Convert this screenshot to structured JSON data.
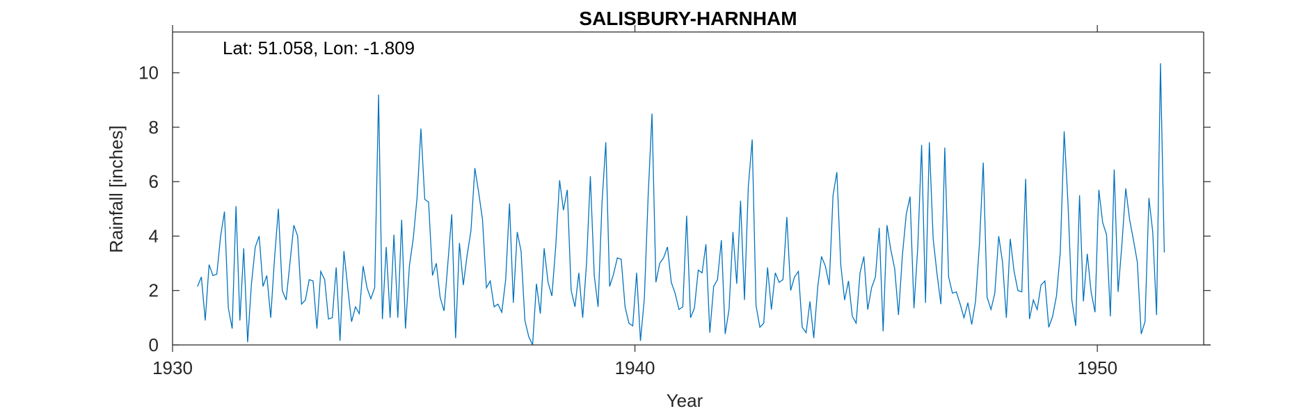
{
  "chart_data": {
    "type": "line",
    "title": "SALISBURY-HARNHAM",
    "annotation": "Lat: 51.058, Lon: -1.809",
    "xlabel": "Year",
    "ylabel": "Rainfall [inches]",
    "xlim": [
      1930,
      1952.3
    ],
    "ylim": [
      0,
      11.5
    ],
    "xticks": [
      1930,
      1940,
      1950
    ],
    "yticks": [
      0,
      2,
      4,
      6,
      8,
      10
    ],
    "grid": false,
    "line_color": "#0072BD",
    "series": [
      {
        "start_year": 1930.54,
        "step_years": 0.0833,
        "values": [
          2.15,
          2.5,
          0.9,
          2.95,
          2.55,
          2.6,
          4.0,
          4.9,
          1.35,
          0.6,
          5.1,
          0.9,
          3.55,
          0.1,
          2.25,
          3.6,
          4.0,
          2.15,
          2.55,
          1.0,
          3.2,
          5.0,
          2.0,
          1.65,
          3.0,
          4.4,
          4.0,
          1.5,
          1.65,
          2.4,
          2.35,
          0.6,
          2.7,
          2.4,
          0.95,
          1.0,
          2.85,
          0.15,
          3.45,
          2.1,
          0.85,
          1.4,
          1.15,
          2.9,
          2.1,
          1.7,
          2.1,
          9.2,
          0.95,
          3.6,
          1.0,
          4.05,
          1.0,
          4.6,
          0.6,
          2.9,
          3.9,
          5.4,
          7.95,
          5.35,
          5.25,
          2.55,
          3.0,
          1.75,
          1.25,
          3.0,
          4.8,
          0.25,
          3.75,
          2.2,
          3.3,
          4.2,
          6.5,
          5.6,
          4.6,
          2.1,
          2.35,
          1.4,
          1.5,
          1.2,
          2.4,
          5.2,
          1.55,
          4.15,
          3.45,
          0.9,
          0.3,
          0.0,
          2.25,
          1.15,
          3.55,
          2.3,
          1.8,
          3.6,
          6.05,
          4.95,
          5.7,
          2.0,
          1.4,
          2.65,
          1.0,
          3.0,
          6.2,
          2.55,
          1.4,
          5.2,
          7.45,
          2.15,
          2.6,
          3.2,
          3.15,
          1.4,
          0.8,
          0.7,
          2.65,
          0.15,
          1.7,
          5.5,
          8.5,
          2.3,
          3.0,
          3.2,
          3.6,
          2.3,
          1.9,
          1.3,
          1.4,
          4.75,
          1.0,
          1.35,
          2.75,
          2.65,
          3.7,
          0.45,
          2.15,
          2.4,
          3.85,
          0.4,
          1.3,
          4.15,
          2.25,
          5.3,
          1.65,
          5.8,
          7.55,
          1.45,
          0.65,
          0.8,
          2.85,
          1.3,
          2.65,
          2.3,
          2.4,
          4.7,
          2.0,
          2.5,
          2.7,
          0.65,
          0.45,
          1.6,
          0.25,
          2.1,
          3.25,
          2.9,
          2.2,
          5.5,
          6.35,
          2.95,
          1.65,
          2.35,
          1.05,
          0.8,
          2.65,
          3.25,
          1.3,
          2.1,
          2.5,
          4.3,
          0.5,
          4.4,
          3.5,
          2.8,
          1.1,
          3.3,
          4.8,
          5.45,
          1.35,
          3.6,
          7.35,
          1.55,
          7.45,
          3.9,
          2.6,
          1.5,
          7.25,
          2.5,
          1.9,
          1.95,
          1.5,
          1.0,
          1.55,
          0.75,
          1.6,
          3.7,
          6.7,
          1.75,
          1.3,
          1.9,
          4.0,
          3.05,
          1.0,
          3.9,
          2.7,
          2.0,
          1.95,
          6.1,
          0.95,
          1.65,
          1.3,
          2.2,
          2.35,
          0.65,
          1.05,
          1.8,
          3.4,
          7.85,
          5.2,
          1.65,
          0.7,
          5.5,
          1.6,
          3.35,
          1.95,
          1.2,
          5.7,
          4.5,
          4.05,
          1.05,
          6.45,
          1.95,
          3.7,
          5.75,
          4.6,
          3.85,
          3.05,
          0.4,
          0.85,
          5.4,
          4.15,
          1.1,
          10.35,
          3.4
        ]
      }
    ]
  }
}
